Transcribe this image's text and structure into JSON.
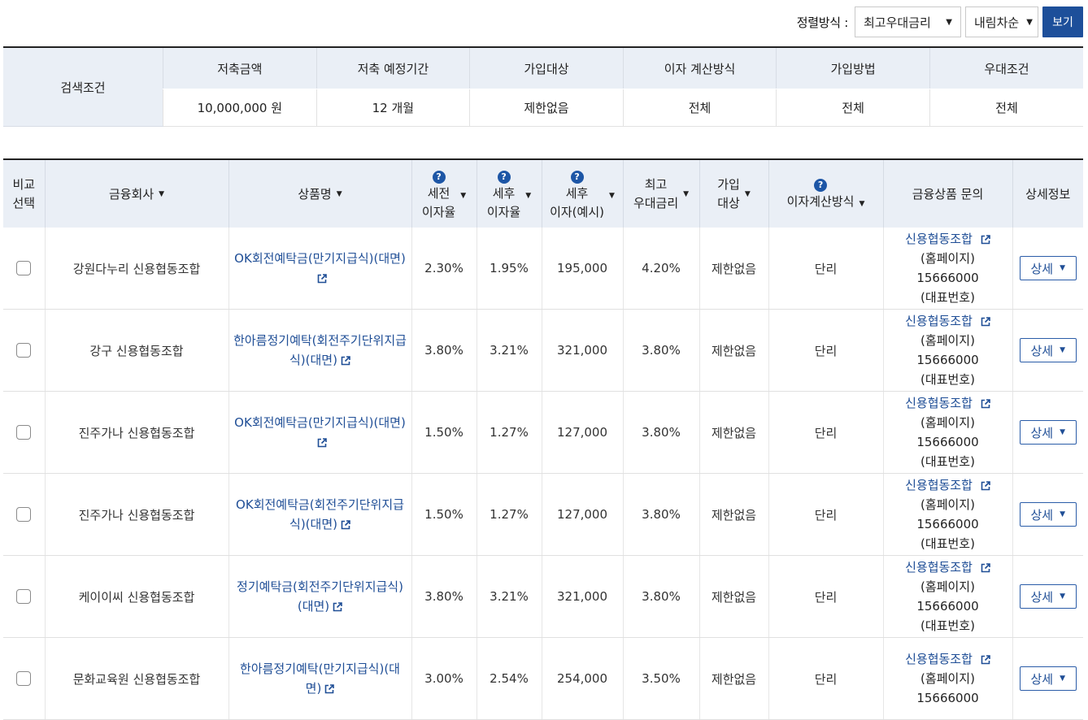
{
  "sort": {
    "label": "정렬방식 :",
    "method": "최고우대금리",
    "order": "내림차순",
    "view_button": "보기"
  },
  "conditions": {
    "title": "검색조건",
    "headers": [
      "저축금액",
      "저축 예정기간",
      "가입대상",
      "이자 계산방식",
      "가입방법",
      "우대조건"
    ],
    "values": [
      "10,000,000 원",
      "12 개월",
      "제한없음",
      "전체",
      "전체",
      "전체"
    ]
  },
  "table": {
    "headers": {
      "compare_1": "비교",
      "compare_2": "선택",
      "company": "금융회사",
      "product": "상품명",
      "pretax_1": "세전",
      "pretax_2": "이자율",
      "posttax_1": "세후",
      "posttax_2": "이자율",
      "interest_1": "세후",
      "interest_2": "이자(예시)",
      "maxrate_1": "최고",
      "maxrate_2": "우대금리",
      "target_1": "가입",
      "target_2": "대상",
      "calc": "이자계산방식",
      "inquiry": "금융상품 문의",
      "detail": "상세정보"
    },
    "help_glyph": "?",
    "rows": [
      {
        "company": "강원다누리 신용협동조합",
        "product_1": "OK회전예탁금(만기지급식)(대면)",
        "product_2": "",
        "pretax": "2.30%",
        "posttax": "1.95%",
        "interest": "195,000",
        "maxrate": "4.20%",
        "target": "제한없음",
        "calc": "단리",
        "inq_link": "신용협동조합",
        "inq_1": "(홈페이지)",
        "inq_2": "15666000",
        "inq_3": "(대표번호)",
        "detail": "상세"
      },
      {
        "company": "강구 신용협동조합",
        "product_1": "한아름정기예탁(회전주기단위지급",
        "product_2": "식)(대면)",
        "pretax": "3.80%",
        "posttax": "3.21%",
        "interest": "321,000",
        "maxrate": "3.80%",
        "target": "제한없음",
        "calc": "단리",
        "inq_link": "신용협동조합",
        "inq_1": "(홈페이지)",
        "inq_2": "15666000",
        "inq_3": "(대표번호)",
        "detail": "상세"
      },
      {
        "company": "진주가나 신용협동조합",
        "product_1": "OK회전예탁금(만기지급식)(대면)",
        "product_2": "",
        "pretax": "1.50%",
        "posttax": "1.27%",
        "interest": "127,000",
        "maxrate": "3.80%",
        "target": "제한없음",
        "calc": "단리",
        "inq_link": "신용협동조합",
        "inq_1": "(홈페이지)",
        "inq_2": "15666000",
        "inq_3": "(대표번호)",
        "detail": "상세"
      },
      {
        "company": "진주가나 신용협동조합",
        "product_1": "OK회전예탁금(회전주기단위지급",
        "product_2": "식)(대면)",
        "pretax": "1.50%",
        "posttax": "1.27%",
        "interest": "127,000",
        "maxrate": "3.80%",
        "target": "제한없음",
        "calc": "단리",
        "inq_link": "신용협동조합",
        "inq_1": "(홈페이지)",
        "inq_2": "15666000",
        "inq_3": "(대표번호)",
        "detail": "상세"
      },
      {
        "company": "케이이씨 신용협동조합",
        "product_1": "정기예탁금(회전주기단위지급식)",
        "product_2": "(대면)",
        "pretax": "3.80%",
        "posttax": "3.21%",
        "interest": "321,000",
        "maxrate": "3.80%",
        "target": "제한없음",
        "calc": "단리",
        "inq_link": "신용협동조합",
        "inq_1": "(홈페이지)",
        "inq_2": "15666000",
        "inq_3": "(대표번호)",
        "detail": "상세"
      },
      {
        "company": "문화교육원 신용협동조합",
        "product_1": "한아름정기예탁(만기지급식)(대",
        "product_2": "면)",
        "pretax": "3.00%",
        "posttax": "2.54%",
        "interest": "254,000",
        "maxrate": "3.50%",
        "target": "제한없음",
        "calc": "단리",
        "inq_link": "신용협동조합",
        "inq_1": "(홈페이지)",
        "inq_2": "15666000",
        "inq_3": "",
        "detail": "상세"
      }
    ]
  }
}
